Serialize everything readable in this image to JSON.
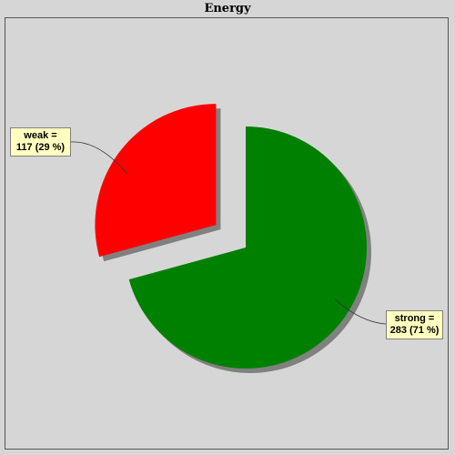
{
  "chart_data": {
    "type": "pie",
    "title": "Energy",
    "exploded": "weak",
    "slices": [
      {
        "name": "weak",
        "value": 117,
        "percent": 29,
        "color": "#ff0000",
        "line1": "weak =",
        "line2": "117 (29 %)"
      },
      {
        "name": "strong",
        "value": 283,
        "percent": 71,
        "color": "#008000",
        "line1": "strong =",
        "line2": "283 (71 %)"
      }
    ]
  },
  "colors": {
    "background": "#d6d6d6",
    "label_background": "#ffffc0",
    "shadow": "#808080"
  }
}
